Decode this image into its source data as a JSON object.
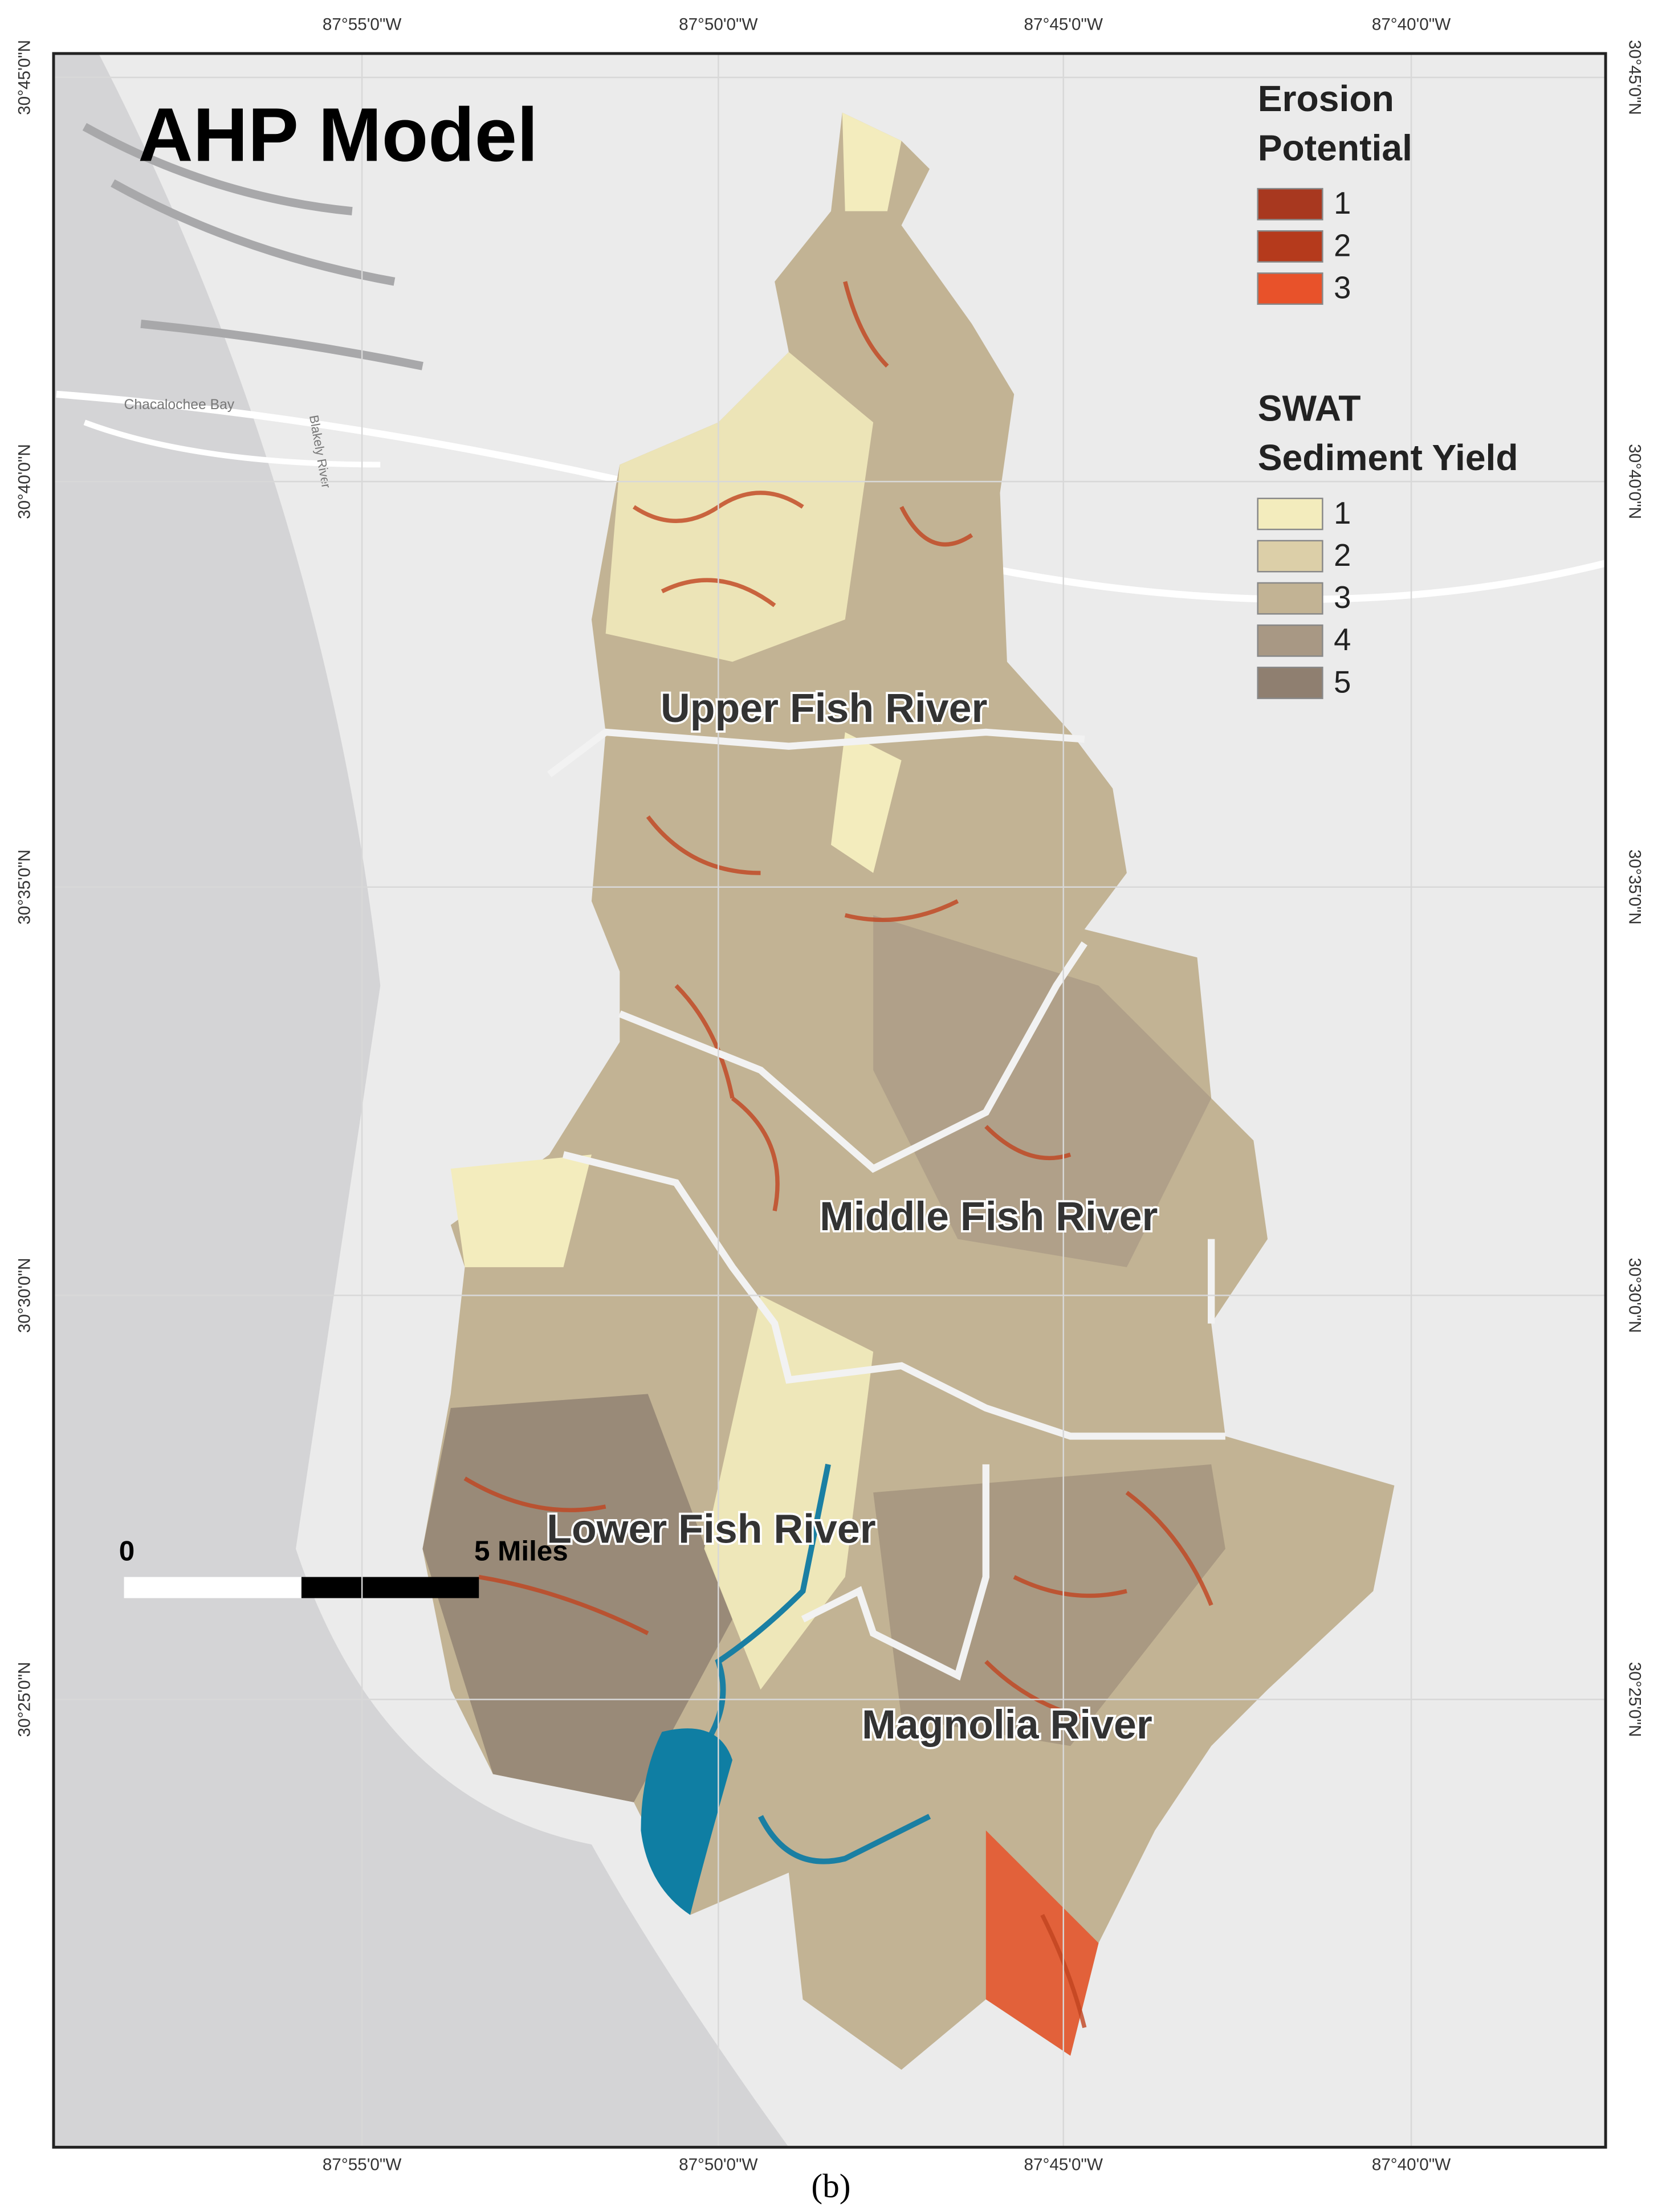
{
  "title": "AHP Model",
  "legend": {
    "erosion": {
      "title_lines": [
        "Erosion",
        "Potential"
      ],
      "items": [
        {
          "label": "1",
          "color": "#a8381f"
        },
        {
          "label": "2",
          "color": "#b53a1c"
        },
        {
          "label": "3",
          "color": "#e8522a"
        }
      ]
    },
    "swat": {
      "title_lines": [
        "SWAT",
        "Sediment Yield"
      ],
      "items": [
        {
          "label": "1",
          "color": "#f3ecbd"
        },
        {
          "label": "2",
          "color": "#dccfa8"
        },
        {
          "label": "3",
          "color": "#c2b394"
        },
        {
          "label": "4",
          "color": "#a89884"
        },
        {
          "label": "5",
          "color": "#8f7f70"
        }
      ]
    }
  },
  "graticule": {
    "lon": [
      "87°55'0\"W",
      "87°50'0\"W",
      "87°45'0\"W",
      "87°40'0\"W"
    ],
    "lat": [
      "30°45'0\"N",
      "30°40'0\"N",
      "30°35'0\"N",
      "30°30'0\"N",
      "30°25'0\"N"
    ]
  },
  "regions": [
    "Upper Fish River",
    "Middle Fish River",
    "Lower Fish River",
    "Magnolia River"
  ],
  "places": [
    "Chacalochee Bay",
    "Blakely River"
  ],
  "scale_bar": {
    "start": "0",
    "end": "5 Miles"
  },
  "caption": "(b)"
}
